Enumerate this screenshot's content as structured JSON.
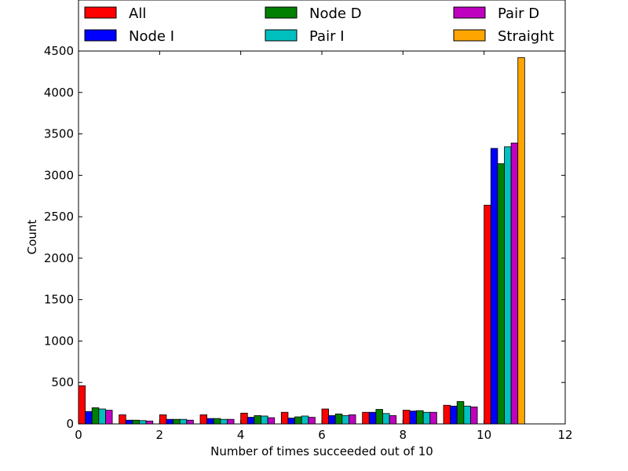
{
  "chart_data": {
    "type": "bar",
    "xlabel": "Number of times succeeded out of 10",
    "ylabel": "Count",
    "xlim": [
      0,
      12
    ],
    "ylim": [
      0,
      4500
    ],
    "xticks": [
      "0",
      "2",
      "4",
      "6",
      "8",
      "10",
      "12"
    ],
    "yticks": [
      "0",
      "500",
      "1000",
      "1500",
      "2000",
      "2500",
      "3000",
      "3500",
      "4000",
      "4500"
    ],
    "bar_width": 0.1667,
    "grid": false,
    "legend_position": "top",
    "categories": [
      0,
      1,
      2,
      3,
      4,
      5,
      6,
      7,
      8,
      9,
      10
    ],
    "series": [
      {
        "name": "All",
        "color": "#ff0000",
        "values": [
          460,
          110,
          110,
          110,
          130,
          140,
          180,
          140,
          165,
          225,
          2640
        ]
      },
      {
        "name": "Node I",
        "color": "#0000ff",
        "values": [
          150,
          45,
          55,
          65,
          80,
          70,
          100,
          140,
          155,
          215,
          3325
        ]
      },
      {
        "name": "Node D",
        "color": "#008000",
        "values": [
          195,
          45,
          55,
          65,
          100,
          85,
          120,
          175,
          160,
          270,
          3140
        ]
      },
      {
        "name": "Pair I",
        "color": "#00bfbf",
        "values": [
          180,
          40,
          55,
          55,
          95,
          95,
          100,
          125,
          140,
          215,
          3345
        ]
      },
      {
        "name": "Pair D",
        "color": "#bf00bf",
        "values": [
          165,
          35,
          45,
          55,
          75,
          80,
          110,
          100,
          140,
          205,
          3390
        ]
      },
      {
        "name": "Straight",
        "color": "#ffa500",
        "values": [
          0,
          0,
          0,
          0,
          0,
          0,
          0,
          0,
          0,
          0,
          4420
        ]
      }
    ]
  }
}
